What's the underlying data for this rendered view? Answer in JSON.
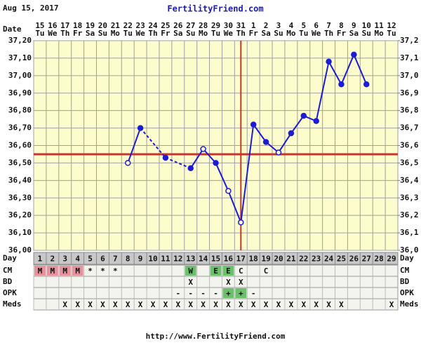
{
  "header": {
    "date": "Aug 15, 2017",
    "site": "FertilityFriend.com"
  },
  "chart_data": {
    "type": "bbt",
    "date_label": "Date",
    "categories": [
      "15",
      "16",
      "17",
      "18",
      "19",
      "20",
      "21",
      "22",
      "23",
      "24",
      "25",
      "26",
      "27",
      "28",
      "29",
      "30",
      "31",
      "1",
      "2",
      "3",
      "4",
      "5",
      "6",
      "7",
      "8",
      "9",
      "10",
      "11",
      "12"
    ],
    "weekdays": [
      "Tu",
      "We",
      "Th",
      "Fr",
      "Sa",
      "Su",
      "Mo",
      "Tu",
      "We",
      "Th",
      "Fr",
      "Sa",
      "Su",
      "Mo",
      "Tu",
      "We",
      "Th",
      "Fr",
      "Sa",
      "Su",
      "Mo",
      "Tu",
      "We",
      "Th",
      "Fr",
      "Sa",
      "Su",
      "Mo",
      "Tu"
    ],
    "day_label": "Day",
    "days": [
      1,
      2,
      3,
      4,
      5,
      6,
      7,
      8,
      9,
      10,
      11,
      12,
      13,
      14,
      15,
      16,
      17,
      18,
      19,
      20,
      21,
      22,
      23,
      24,
      25,
      26,
      27,
      28,
      29
    ],
    "values": [
      null,
      null,
      null,
      null,
      null,
      null,
      null,
      36.5,
      36.7,
      null,
      36.53,
      null,
      36.47,
      36.58,
      36.5,
      36.34,
      36.16,
      36.72,
      36.62,
      36.56,
      36.67,
      36.77,
      36.74,
      37.08,
      36.95,
      37.12,
      36.95,
      null,
      null
    ],
    "hollow": [
      false,
      false,
      false,
      false,
      false,
      false,
      false,
      true,
      false,
      false,
      false,
      false,
      false,
      true,
      false,
      true,
      true,
      false,
      false,
      true,
      false,
      false,
      false,
      false,
      false,
      false,
      false,
      false,
      false
    ],
    "color": "#1c1cd8",
    "ylim": [
      36.0,
      37.2
    ],
    "yticks": [
      {
        "value": 36.0,
        "label": "36,00"
      },
      {
        "value": 36.1,
        "label": "36,10"
      },
      {
        "value": 36.2,
        "label": "36,20"
      },
      {
        "value": 36.3,
        "label": "36,30"
      },
      {
        "value": 36.4,
        "label": "36,40"
      },
      {
        "value": 36.5,
        "label": "36,50"
      },
      {
        "value": 36.6,
        "label": "36,60"
      },
      {
        "value": 36.7,
        "label": "36,70"
      },
      {
        "value": 36.8,
        "label": "36,80"
      },
      {
        "value": 36.9,
        "label": "36,90"
      },
      {
        "value": 37.0,
        "label": "37,00"
      },
      {
        "value": 37.1,
        "label": "37,10"
      },
      {
        "value": 37.2,
        "label": "37,20"
      }
    ],
    "y2lim": [
      36.0,
      37.2
    ],
    "y2ticks": [
      {
        "value": 36.0,
        "label": "36,0"
      },
      {
        "value": 36.1,
        "label": "36,1"
      },
      {
        "value": 36.2,
        "label": "36,2"
      },
      {
        "value": 36.3,
        "label": "36,3"
      },
      {
        "value": 36.4,
        "label": "36,4"
      },
      {
        "value": 36.5,
        "label": "36,5"
      },
      {
        "value": 36.6,
        "label": "36,6"
      },
      {
        "value": 36.7,
        "label": "36,7"
      },
      {
        "value": 36.8,
        "label": "36,8"
      },
      {
        "value": 36.9,
        "label": "36,9"
      },
      {
        "value": 37.0,
        "label": "37,0"
      },
      {
        "value": 37.1,
        "label": "37,1"
      },
      {
        "value": 37.2,
        "label": "37,2"
      }
    ],
    "grid": true,
    "coverline": 36.55,
    "ovulation_day": 17,
    "marker_color": "#c8352c",
    "rows": [
      {
        "label": "CM",
        "cells": [
          "M",
          "M",
          "M",
          "M",
          "*",
          "*",
          "*",
          null,
          null,
          null,
          null,
          null,
          "W",
          null,
          "E",
          "E",
          "C",
          null,
          "C",
          null,
          null,
          null,
          null,
          null,
          null,
          null,
          null,
          null,
          null
        ],
        "fills": [
          "#e8909c",
          "#e8909c",
          "#e8909c",
          "#e8909c",
          null,
          null,
          null,
          null,
          null,
          null,
          null,
          null,
          "#6cc06c",
          null,
          "#6cc06c",
          "#6cc06c",
          null,
          null,
          null,
          null,
          null,
          null,
          null,
          null,
          null,
          null,
          null,
          null,
          null
        ]
      },
      {
        "label": "BD",
        "cells": [
          null,
          null,
          null,
          null,
          null,
          null,
          null,
          null,
          null,
          null,
          null,
          null,
          "X",
          null,
          null,
          "X",
          "X",
          null,
          null,
          null,
          null,
          null,
          null,
          null,
          null,
          null,
          null,
          null,
          null
        ]
      },
      {
        "label": "OPK",
        "cells": [
          null,
          null,
          null,
          null,
          null,
          null,
          null,
          null,
          null,
          null,
          null,
          "-",
          "-",
          "-",
          "-",
          "+",
          "+",
          "-",
          null,
          null,
          null,
          null,
          null,
          null,
          null,
          null,
          null,
          null,
          null
        ],
        "fills": [
          null,
          null,
          null,
          null,
          null,
          null,
          null,
          null,
          null,
          null,
          null,
          null,
          null,
          null,
          null,
          "#6cc06c",
          "#6cc06c",
          null,
          null,
          null,
          null,
          null,
          null,
          null,
          null,
          null,
          null,
          null,
          null
        ]
      },
      {
        "label": "Meds",
        "cells": [
          null,
          null,
          "X",
          "X",
          "X",
          "X",
          "X",
          "X",
          "X",
          "X",
          "X",
          "X",
          "X",
          "X",
          "X",
          "X",
          "X",
          "X",
          "X",
          "X",
          "X",
          "X",
          "X",
          "X",
          "X",
          null,
          null,
          null,
          "X"
        ]
      }
    ]
  },
  "footer": "http://www.FertilityFriend.com"
}
